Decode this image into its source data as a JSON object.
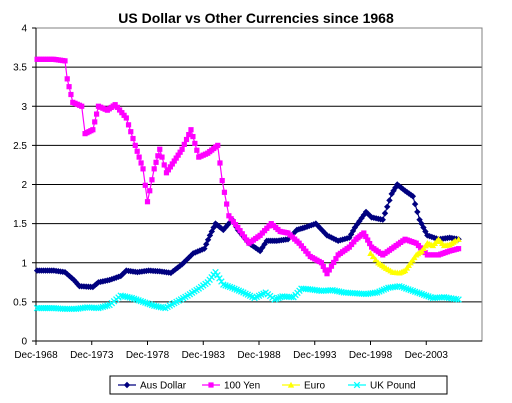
{
  "chart_data": {
    "type": "line",
    "title": "US Dollar vs Other Currencies since 1968",
    "xlabel": "",
    "ylabel": "",
    "ylim": [
      0,
      4
    ],
    "yticks": [
      "0",
      "0.5",
      "1",
      "1.5",
      "2",
      "2.5",
      "3",
      "3.5",
      "4"
    ],
    "xlim": [
      1968.9,
      2008.9
    ],
    "xticks": [
      {
        "label": "Dec-1968",
        "x": 1968.9
      },
      {
        "label": "Dec-1973",
        "x": 1973.9
      },
      {
        "label": "Dec-1978",
        "x": 1978.9
      },
      {
        "label": "Dec-1983",
        "x": 1983.9
      },
      {
        "label": "Dec-1988",
        "x": 1988.9
      },
      {
        "label": "Dec-1993",
        "x": 1993.9
      },
      {
        "label": "Dec-1998",
        "x": 1998.9
      },
      {
        "label": "Dec-2003",
        "x": 2003.9
      }
    ],
    "grid": true,
    "legend_position": "bottom",
    "series": [
      {
        "name": "Aus Dollar",
        "color": "#00007f",
        "marker": "diamond",
        "points": [
          [
            1969.0,
            0.9
          ],
          [
            1970.5,
            0.9
          ],
          [
            1971.5,
            0.88
          ],
          [
            1972.3,
            0.78
          ],
          [
            1972.8,
            0.7
          ],
          [
            1974.0,
            0.69
          ],
          [
            1974.5,
            0.75
          ],
          [
            1975.5,
            0.78
          ],
          [
            1976.5,
            0.83
          ],
          [
            1977.0,
            0.9
          ],
          [
            1978.0,
            0.88
          ],
          [
            1979.0,
            0.9
          ],
          [
            1980.0,
            0.89
          ],
          [
            1981.0,
            0.87
          ],
          [
            1982.0,
            0.98
          ],
          [
            1983.0,
            1.12
          ],
          [
            1984.0,
            1.18
          ],
          [
            1984.5,
            1.35
          ],
          [
            1985.0,
            1.5
          ],
          [
            1985.7,
            1.42
          ],
          [
            1986.5,
            1.55
          ],
          [
            1987.0,
            1.42
          ],
          [
            1988.0,
            1.25
          ],
          [
            1989.0,
            1.15
          ],
          [
            1989.6,
            1.28
          ],
          [
            1990.5,
            1.28
          ],
          [
            1991.5,
            1.3
          ],
          [
            1992.3,
            1.42
          ],
          [
            1993.0,
            1.45
          ],
          [
            1994.0,
            1.5
          ],
          [
            1995.0,
            1.35
          ],
          [
            1996.0,
            1.28
          ],
          [
            1997.0,
            1.32
          ],
          [
            1997.5,
            1.45
          ],
          [
            1998.5,
            1.65
          ],
          [
            1999.0,
            1.58
          ],
          [
            2000.0,
            1.55
          ],
          [
            2000.8,
            1.88
          ],
          [
            2001.3,
            2.0
          ],
          [
            2002.0,
            1.92
          ],
          [
            2002.7,
            1.85
          ],
          [
            2003.3,
            1.55
          ],
          [
            2004.0,
            1.35
          ],
          [
            2005.0,
            1.3
          ],
          [
            2006.0,
            1.32
          ],
          [
            2006.8,
            1.3
          ]
        ]
      },
      {
        "name": "100 Yen",
        "color": "#ff00ff",
        "marker": "square",
        "points": [
          [
            1969.0,
            3.6
          ],
          [
            1970.5,
            3.6
          ],
          [
            1971.5,
            3.58
          ],
          [
            1971.7,
            3.35
          ],
          [
            1972.2,
            3.05
          ],
          [
            1973.0,
            3.0
          ],
          [
            1973.3,
            2.65
          ],
          [
            1974.0,
            2.7
          ],
          [
            1974.5,
            3.0
          ],
          [
            1975.3,
            2.95
          ],
          [
            1976.0,
            3.02
          ],
          [
            1977.0,
            2.85
          ],
          [
            1977.8,
            2.5
          ],
          [
            1978.5,
            2.2
          ],
          [
            1978.9,
            1.78
          ],
          [
            1979.5,
            2.2
          ],
          [
            1980.0,
            2.45
          ],
          [
            1980.6,
            2.15
          ],
          [
            1981.3,
            2.3
          ],
          [
            1982.0,
            2.45
          ],
          [
            1982.8,
            2.7
          ],
          [
            1983.5,
            2.35
          ],
          [
            1984.3,
            2.4
          ],
          [
            1985.2,
            2.5
          ],
          [
            1985.6,
            2.05
          ],
          [
            1986.2,
            1.6
          ],
          [
            1987.0,
            1.45
          ],
          [
            1988.0,
            1.25
          ],
          [
            1989.0,
            1.35
          ],
          [
            1990.0,
            1.5
          ],
          [
            1990.8,
            1.4
          ],
          [
            1991.5,
            1.38
          ],
          [
            1992.5,
            1.25
          ],
          [
            1993.5,
            1.08
          ],
          [
            1994.5,
            1.0
          ],
          [
            1995.0,
            0.86
          ],
          [
            1996.0,
            1.1
          ],
          [
            1997.0,
            1.2
          ],
          [
            1997.6,
            1.3
          ],
          [
            1998.3,
            1.38
          ],
          [
            1999.0,
            1.2
          ],
          [
            2000.0,
            1.1
          ],
          [
            2001.0,
            1.2
          ],
          [
            2002.0,
            1.3
          ],
          [
            2003.0,
            1.25
          ],
          [
            2004.0,
            1.1
          ],
          [
            2005.0,
            1.1
          ],
          [
            2006.0,
            1.15
          ],
          [
            2006.8,
            1.18
          ]
        ]
      },
      {
        "name": "Euro",
        "color": "#ffff00",
        "marker": "triangle",
        "points": [
          [
            1998.9,
            1.12
          ],
          [
            1999.6,
            1.0
          ],
          [
            2000.3,
            0.93
          ],
          [
            2000.9,
            0.88
          ],
          [
            2001.5,
            0.87
          ],
          [
            2002.0,
            0.9
          ],
          [
            2002.5,
            1.0
          ],
          [
            2003.0,
            1.1
          ],
          [
            2003.5,
            1.15
          ],
          [
            2004.0,
            1.25
          ],
          [
            2004.5,
            1.22
          ],
          [
            2005.0,
            1.3
          ],
          [
            2005.5,
            1.22
          ],
          [
            2006.0,
            1.23
          ],
          [
            2006.5,
            1.28
          ],
          [
            2006.8,
            1.3
          ]
        ]
      },
      {
        "name": "UK Pound",
        "color": "#00ffff",
        "marker": "x",
        "points": [
          [
            1969.0,
            0.42
          ],
          [
            1970.5,
            0.42
          ],
          [
            1971.5,
            0.41
          ],
          [
            1972.5,
            0.41
          ],
          [
            1973.5,
            0.43
          ],
          [
            1974.5,
            0.42
          ],
          [
            1975.5,
            0.46
          ],
          [
            1976.5,
            0.58
          ],
          [
            1977.5,
            0.55
          ],
          [
            1978.5,
            0.5
          ],
          [
            1979.5,
            0.45
          ],
          [
            1980.5,
            0.42
          ],
          [
            1981.5,
            0.5
          ],
          [
            1982.5,
            0.58
          ],
          [
            1983.5,
            0.67
          ],
          [
            1984.3,
            0.75
          ],
          [
            1985.0,
            0.88
          ],
          [
            1985.7,
            0.72
          ],
          [
            1986.5,
            0.68
          ],
          [
            1987.5,
            0.62
          ],
          [
            1988.5,
            0.55
          ],
          [
            1989.5,
            0.62
          ],
          [
            1990.3,
            0.53
          ],
          [
            1991.0,
            0.57
          ],
          [
            1992.0,
            0.56
          ],
          [
            1992.7,
            0.67
          ],
          [
            1993.5,
            0.66
          ],
          [
            1994.5,
            0.64
          ],
          [
            1995.5,
            0.65
          ],
          [
            1996.5,
            0.62
          ],
          [
            1997.5,
            0.61
          ],
          [
            1998.5,
            0.6
          ],
          [
            1999.5,
            0.62
          ],
          [
            2000.5,
            0.68
          ],
          [
            2001.5,
            0.7
          ],
          [
            2002.5,
            0.65
          ],
          [
            2003.5,
            0.6
          ],
          [
            2004.5,
            0.55
          ],
          [
            2005.5,
            0.56
          ],
          [
            2006.8,
            0.53
          ]
        ]
      }
    ]
  }
}
